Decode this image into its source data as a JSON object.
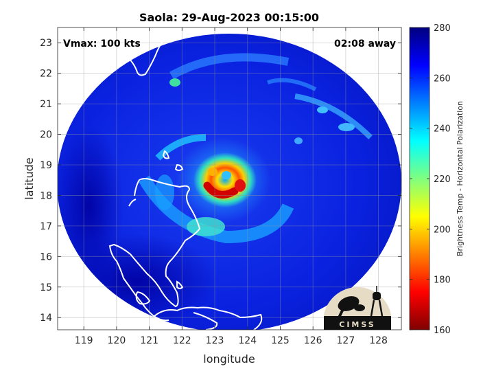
{
  "title": "Saola: 29-Aug-2023 00:15:00",
  "annotations": {
    "vmax": "Vmax: 100 kts",
    "time_away": "02:08 away"
  },
  "axes": {
    "xlabel": "longitude",
    "ylabel": "latitude",
    "xlim": [
      118.2,
      128.7
    ],
    "ylim": [
      13.6,
      23.5
    ],
    "xticks": [
      "119",
      "120",
      "121",
      "122",
      "123",
      "124",
      "125",
      "126",
      "127",
      "128"
    ],
    "yticks": [
      "14",
      "15",
      "16",
      "17",
      "18",
      "19",
      "20",
      "21",
      "22",
      "23"
    ],
    "grid": true
  },
  "colorbar": {
    "label": "Brightness Temp - Horizontal Polarization",
    "range": [
      160,
      280
    ],
    "ticks": [
      "160",
      "180",
      "200",
      "220",
      "240",
      "260",
      "280"
    ],
    "colormap": "jet"
  },
  "logo": {
    "text": "CIMSS"
  },
  "colors": {
    "background": "#0000c8",
    "coast": "#ffffff",
    "grid": "#7f7f7f"
  }
}
